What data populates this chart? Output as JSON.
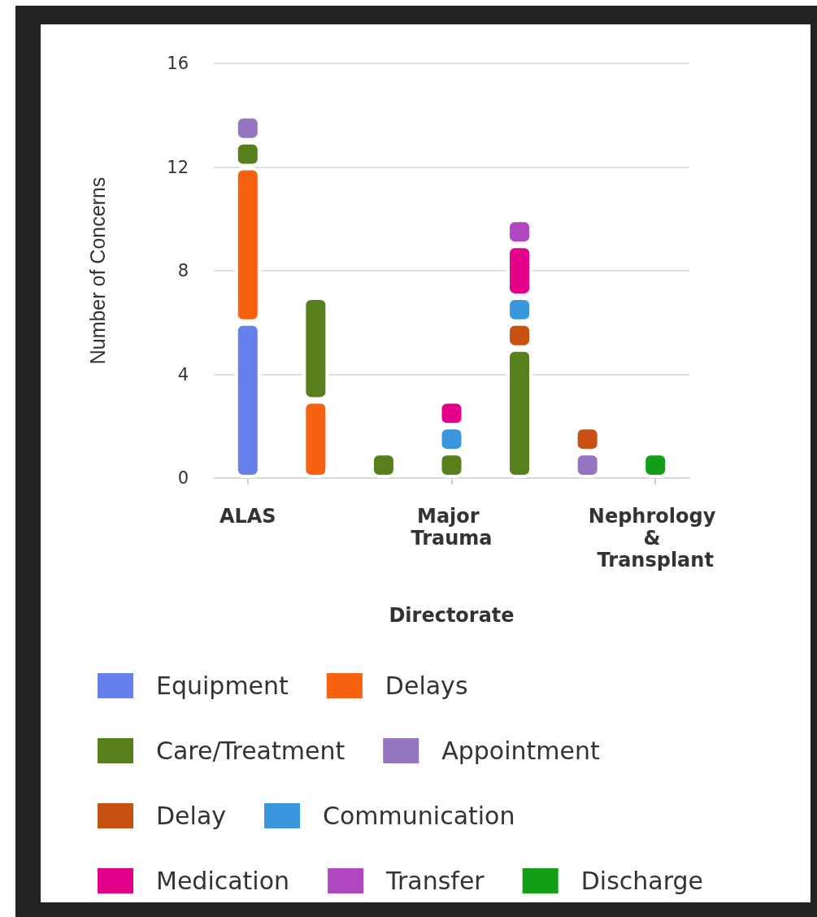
{
  "chart_data": {
    "type": "bar",
    "xlabel": "Directorate",
    "ylabel": "Number of Concerns",
    "categories": [
      "ALAS",
      null,
      null,
      "Major Trauma",
      null,
      null,
      "Nephrology & Transplant"
    ],
    "stacked": true,
    "ylim": [
      0,
      16
    ],
    "yticks": [
      0,
      4,
      8,
      12,
      16
    ],
    "grid": "y",
    "legend": "bottom left",
    "series": [
      {
        "name": "Equipment",
        "color": "#6680ee",
        "values": [
          6,
          null,
          null,
          null,
          null,
          null,
          null
        ]
      },
      {
        "name": "Delays",
        "color": "#f6620f",
        "values": [
          6,
          3,
          null,
          null,
          null,
          null,
          null
        ]
      },
      {
        "name": "Care/Treatment",
        "color": "#57801d",
        "values": [
          1,
          4,
          1,
          1,
          5,
          null,
          null
        ]
      },
      {
        "name": "Appointment",
        "color": "#9575c0",
        "values": [
          1,
          null,
          null,
          null,
          null,
          1,
          null
        ]
      },
      {
        "name": "Delay",
        "color": "#c95013",
        "values": [
          null,
          null,
          null,
          null,
          1,
          1,
          null
        ]
      },
      {
        "name": "Communication",
        "color": "#3b97dd",
        "values": [
          null,
          null,
          null,
          1,
          1,
          null,
          null
        ]
      },
      {
        "name": "Medication",
        "color": "#e2008a",
        "values": [
          null,
          null,
          null,
          1,
          2,
          null,
          null
        ]
      },
      {
        "name": "Transfer",
        "color": "#b049c0",
        "values": [
          null,
          null,
          null,
          null,
          1,
          null,
          null
        ]
      },
      {
        "name": "Discharge",
        "color": "#139e17",
        "values": [
          null,
          null,
          null,
          null,
          null,
          null,
          1
        ]
      }
    ]
  }
}
